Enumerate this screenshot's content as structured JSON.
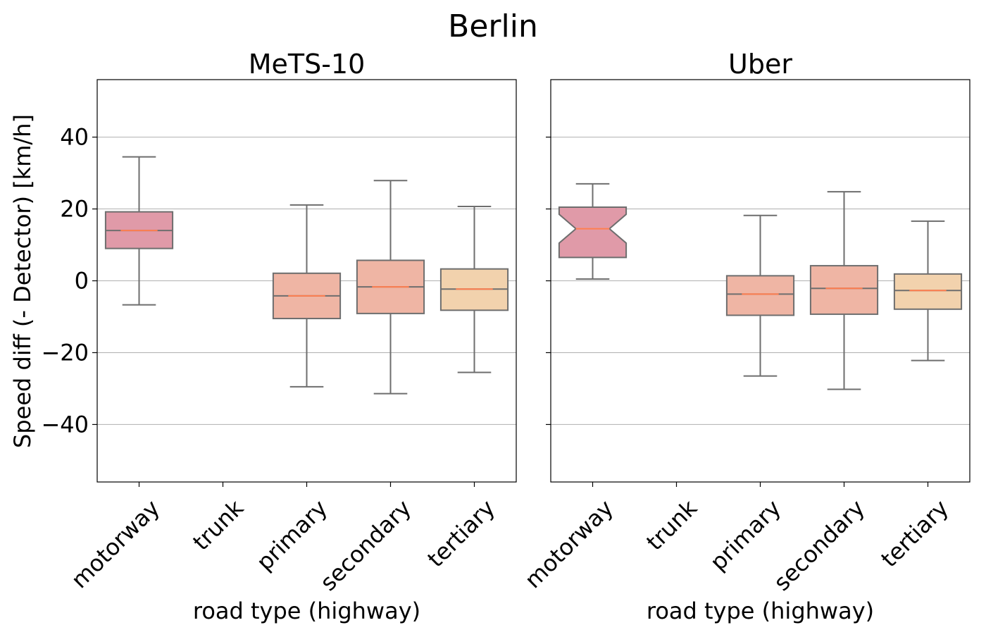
{
  "figure": {
    "title": "Berlin"
  },
  "chart_data": [
    {
      "type": "box",
      "title": "MeTS-10",
      "xlabel": "road type (highway)",
      "ylabel": "Speed diff (- Detector) [km/h]",
      "ylim": [
        -56,
        56
      ],
      "yticks": [
        40,
        20,
        0,
        -20,
        -40
      ],
      "ytick_labels": [
        "40",
        "20",
        "0",
        "−20",
        "−40"
      ],
      "grid": "horizontal",
      "categories": [
        "motorway",
        "trunk",
        "primary",
        "secondary",
        "tertiary"
      ],
      "boxes": [
        {
          "category": "motorway",
          "whislo": -6.7,
          "q1": 9.0,
          "med": 14.0,
          "q3": 19.2,
          "whishi": 34.5,
          "notched": false,
          "color": "#e09aa8"
        },
        {
          "category": "trunk",
          "empty": true
        },
        {
          "category": "primary",
          "whislo": -29.5,
          "q1": -10.5,
          "med": -4.2,
          "q3": 2.1,
          "whishi": 21.1,
          "notched": false,
          "color": "#efb5a4"
        },
        {
          "category": "secondary",
          "whislo": -31.4,
          "q1": -9.1,
          "med": -1.7,
          "q3": 5.7,
          "whishi": 27.9,
          "notched": false,
          "color": "#efb5a4"
        },
        {
          "category": "tertiary",
          "whislo": -25.5,
          "q1": -8.2,
          "med": -2.3,
          "q3": 3.3,
          "whishi": 20.7,
          "notched": false,
          "color": "#f2d2ad"
        }
      ]
    },
    {
      "type": "box",
      "title": "Uber",
      "xlabel": "road type (highway)",
      "ylim": [
        -56,
        56
      ],
      "yticks": [
        40,
        20,
        0,
        -20,
        -40
      ],
      "grid": "horizontal",
      "shared_y": true,
      "categories": [
        "motorway",
        "trunk",
        "primary",
        "secondary",
        "tertiary"
      ],
      "boxes": [
        {
          "category": "motorway",
          "whislo": 0.5,
          "q1": 6.5,
          "med": 14.5,
          "q3": 20.5,
          "whishi": 27.0,
          "notched": true,
          "notch_lo": 10.5,
          "notch_hi": 18.5,
          "color": "#e09aa8"
        },
        {
          "category": "trunk",
          "empty": true
        },
        {
          "category": "primary",
          "whislo": -26.5,
          "q1": -9.6,
          "med": -3.7,
          "q3": 1.4,
          "whishi": 18.2,
          "notched": false,
          "color": "#efb5a4"
        },
        {
          "category": "secondary",
          "whislo": -30.2,
          "q1": -9.3,
          "med": -2.1,
          "q3": 4.2,
          "whishi": 24.8,
          "notched": false,
          "color": "#efb5a4"
        },
        {
          "category": "tertiary",
          "whislo": -22.2,
          "q1": -7.9,
          "med": -2.7,
          "q3": 1.9,
          "whishi": 16.6,
          "notched": false,
          "color": "#f2d2ad"
        }
      ]
    }
  ]
}
